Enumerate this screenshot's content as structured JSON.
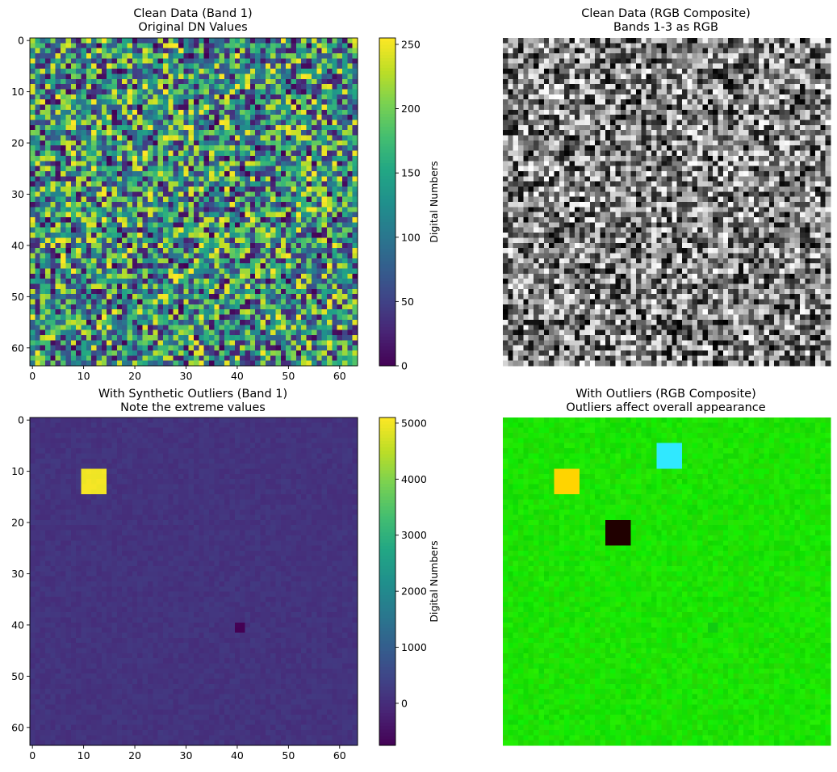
{
  "panels": [
    {
      "id": "clean-band1",
      "title": [
        "Clean Data (Band 1)",
        "Original DN Values"
      ],
      "kind": "heatmap",
      "colormap": "viridis",
      "show_axes": true,
      "colorbar": {
        "label": "Digital Numbers",
        "vmin": 0,
        "vmax": 255,
        "ticks": [
          0,
          50,
          100,
          150,
          200,
          250
        ]
      }
    },
    {
      "id": "clean-rgb",
      "title": [
        "Clean Data (RGB Composite)",
        "Bands 1-3 as RGB"
      ],
      "kind": "rgb-grayscale",
      "show_axes": false
    },
    {
      "id": "outliers-band1",
      "title": [
        "With Synthetic Outliers (Band 1)",
        "Note the extreme values"
      ],
      "kind": "heatmap",
      "colormap": "viridis",
      "show_axes": true,
      "colorbar": {
        "label": "Digital Numbers",
        "vmin": -750,
        "vmax": 5100,
        "ticks": [
          0,
          1000,
          2000,
          3000,
          4000,
          5000
        ]
      }
    },
    {
      "id": "outliers-rgb",
      "title": [
        "With Outliers (RGB Composite)",
        "Outliers affect overall appearance"
      ],
      "kind": "rgb-green",
      "show_axes": false
    }
  ],
  "chart_data": [
    {
      "type": "heatmap",
      "title": "Clean Data (Band 1)\nOriginal DN Values",
      "grid_size": [
        64,
        64
      ],
      "xlim": [
        0,
        63
      ],
      "ylim": [
        63,
        0
      ],
      "xticks": [
        0,
        10,
        20,
        30,
        40,
        50,
        60
      ],
      "yticks": [
        0,
        10,
        20,
        30,
        40,
        50,
        60
      ],
      "value_range": [
        0,
        255
      ],
      "distribution": "uniform random digital numbers",
      "colormap": "viridis",
      "colorbar_label": "Digital Numbers"
    },
    {
      "type": "heatmap",
      "title": "Clean Data (RGB Composite)\nBands 1-3 as RGB",
      "grid_size": [
        64,
        64
      ],
      "rendering": "RGB composite of bands 1-3 (appears grayscale noise)",
      "axes": "off"
    },
    {
      "type": "heatmap",
      "title": "With Synthetic Outliers (Band 1)\nNote the extreme values",
      "grid_size": [
        64,
        64
      ],
      "xlim": [
        0,
        63
      ],
      "ylim": [
        63,
        0
      ],
      "xticks": [
        0,
        10,
        20,
        30,
        40,
        50,
        60
      ],
      "yticks": [
        0,
        10,
        20,
        30,
        40,
        50,
        60
      ],
      "value_range": [
        -750,
        5100
      ],
      "background_value_approx": 130,
      "outlier_regions": [
        {
          "rows": [
            10,
            14
          ],
          "cols": [
            10,
            14
          ],
          "value": 5000
        },
        {
          "rows": [
            40,
            41
          ],
          "cols": [
            40,
            41
          ],
          "value": -750
        }
      ],
      "colormap": "viridis",
      "colorbar_label": "Digital Numbers"
    },
    {
      "type": "heatmap",
      "title": "With Outliers (RGB Composite)\nOutliers affect overall appearance",
      "grid_size": [
        64,
        64
      ],
      "rendering": "RGB composite dominated by green band",
      "outlier_regions": [
        {
          "rows": [
            10,
            14
          ],
          "cols": [
            10,
            14
          ],
          "color": "#ffd400"
        },
        {
          "rows": [
            5,
            9
          ],
          "cols": [
            30,
            34
          ],
          "color": "#30e8ff"
        },
        {
          "rows": [
            20,
            24
          ],
          "cols": [
            20,
            24
          ],
          "color": "#200000"
        },
        {
          "rows": [
            40,
            41
          ],
          "cols": [
            40,
            41
          ],
          "color": "#10cc10"
        }
      ],
      "axes": "off"
    }
  ]
}
